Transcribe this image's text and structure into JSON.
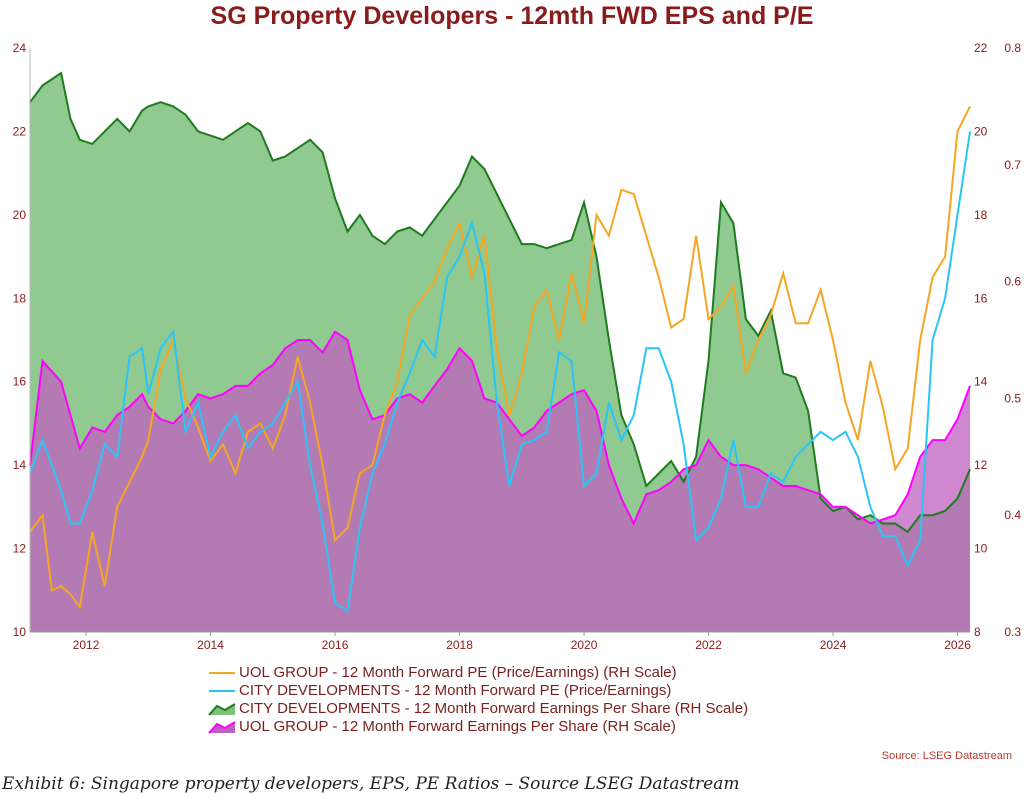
{
  "header": {
    "title": "SG Property Developers - 12mth FWD EPS and P/E"
  },
  "source": "Source: LSEG Datastream",
  "caption": "Exhibit 6: Singapore property developers, EPS, PE Ratios – Source LSEG Datastream",
  "legend": [
    {
      "label": "UOL GROUP - 12 Month Forward PE (Price/Earnings) (RH Scale)",
      "color": "#f5a623",
      "kind": "line"
    },
    {
      "label": "CITY DEVELOPMENTS - 12 Month Forward PE (Price/Earnings)",
      "color": "#29c5f6",
      "kind": "line"
    },
    {
      "label": "CITY DEVELOPMENTS - 12 Month Forward Earnings Per Share (RH Scale)",
      "color": "#1e7b1e",
      "fill": "#7ec17e",
      "kind": "area"
    },
    {
      "label": "UOL GROUP - 12 Month Forward Earnings Per Share (RH Scale)",
      "color": "#ff00ff",
      "fill": "#bf5fbf",
      "kind": "area"
    }
  ],
  "chart_data": {
    "type": "line",
    "title": "SG Property Developers - 12mth FWD EPS and P/E",
    "x_ticks": [
      "2012",
      "2014",
      "2016",
      "2018",
      "2020",
      "2022",
      "2024",
      "2026"
    ],
    "left_axis": {
      "ylim": [
        10,
        24
      ],
      "ticks": [
        10,
        12,
        14,
        16,
        18,
        20,
        22,
        24
      ]
    },
    "right_axis_1": {
      "ylim": [
        8,
        22
      ],
      "ticks": [
        8,
        10,
        12,
        14,
        16,
        18,
        20,
        22
      ]
    },
    "right_axis_2": {
      "ylim": [
        0.3,
        0.8
      ],
      "ticks": [
        0.3,
        0.4,
        0.5,
        0.6,
        0.7,
        0.8
      ]
    },
    "series": [
      {
        "name": "CITY DEVELOPMENTS - 12 Month Forward Earnings Per Share (RH Scale)",
        "axis": "left",
        "color": "#1e7b1e",
        "fill": "#7ec17e",
        "x": [
          2011.1,
          2011.3,
          2011.6,
          2011.75,
          2011.9,
          2012.1,
          2012.3,
          2012.5,
          2012.7,
          2012.9,
          2013.0,
          2013.2,
          2013.4,
          2013.6,
          2013.8,
          2014.0,
          2014.2,
          2014.4,
          2014.6,
          2014.8,
          2015.0,
          2015.2,
          2015.4,
          2015.6,
          2015.8,
          2016.0,
          2016.2,
          2016.4,
          2016.6,
          2016.8,
          2017.0,
          2017.2,
          2017.4,
          2017.6,
          2017.8,
          2018.0,
          2018.2,
          2018.4,
          2018.6,
          2018.8,
          2019.0,
          2019.2,
          2019.4,
          2019.6,
          2019.8,
          2020.0,
          2020.2,
          2020.4,
          2020.6,
          2020.8,
          2021.0,
          2021.2,
          2021.4,
          2021.6,
          2021.8,
          2022.0,
          2022.2,
          2022.4,
          2022.6,
          2022.8,
          2023.0,
          2023.2,
          2023.4,
          2023.6,
          2023.8,
          2024.0,
          2024.2,
          2024.4,
          2024.6,
          2024.8,
          2025.0,
          2025.2,
          2025.4,
          2025.6,
          2025.8,
          2026.0,
          2026.2
        ],
        "values": [
          22.7,
          23.1,
          23.4,
          22.3,
          21.8,
          21.7,
          22.0,
          22.3,
          22.0,
          22.5,
          22.6,
          22.7,
          22.6,
          22.4,
          22.0,
          21.9,
          21.8,
          22.0,
          22.2,
          22.0,
          21.3,
          21.4,
          21.6,
          21.8,
          21.5,
          20.4,
          19.6,
          20.0,
          19.5,
          19.3,
          19.6,
          19.7,
          19.5,
          19.9,
          20.3,
          20.7,
          21.4,
          21.1,
          20.5,
          19.9,
          19.3,
          19.3,
          19.2,
          19.3,
          19.4,
          20.3,
          19.0,
          17.0,
          15.2,
          14.5,
          13.5,
          13.8,
          14.1,
          13.6,
          14.2,
          16.5,
          20.3,
          19.8,
          17.5,
          17.1,
          17.7,
          16.2,
          16.1,
          15.3,
          13.2,
          12.9,
          13.0,
          12.7,
          12.8,
          12.6,
          12.6,
          12.4,
          12.8,
          12.8,
          12.9,
          13.2,
          13.9
        ]
      },
      {
        "name": "UOL GROUP - 12 Month Forward Earnings Per Share (RH Scale)",
        "axis": "left",
        "color": "#ff00ff",
        "fill": "#bf5fbf",
        "x": [
          2011.1,
          2011.3,
          2011.6,
          2011.75,
          2011.9,
          2012.1,
          2012.3,
          2012.5,
          2012.7,
          2012.9,
          2013.0,
          2013.2,
          2013.4,
          2013.6,
          2013.8,
          2014.0,
          2014.2,
          2014.4,
          2014.6,
          2014.8,
          2015.0,
          2015.2,
          2015.4,
          2015.6,
          2015.8,
          2016.0,
          2016.2,
          2016.4,
          2016.6,
          2016.8,
          2017.0,
          2017.2,
          2017.4,
          2017.6,
          2017.8,
          2018.0,
          2018.2,
          2018.4,
          2018.6,
          2018.8,
          2019.0,
          2019.2,
          2019.4,
          2019.6,
          2019.8,
          2020.0,
          2020.2,
          2020.4,
          2020.6,
          2020.8,
          2021.0,
          2021.2,
          2021.4,
          2021.6,
          2021.8,
          2022.0,
          2022.2,
          2022.4,
          2022.6,
          2022.8,
          2023.0,
          2023.2,
          2023.4,
          2023.6,
          2023.8,
          2024.0,
          2024.2,
          2024.4,
          2024.6,
          2024.8,
          2025.0,
          2025.2,
          2025.4,
          2025.6,
          2025.8,
          2026.0,
          2026.2
        ],
        "values": [
          14.0,
          16.5,
          16.0,
          15.2,
          14.4,
          14.9,
          14.8,
          15.2,
          15.4,
          15.7,
          15.4,
          15.1,
          15.0,
          15.3,
          15.7,
          15.6,
          15.7,
          15.9,
          15.9,
          16.2,
          16.4,
          16.8,
          17.0,
          17.0,
          16.7,
          17.2,
          17.0,
          15.8,
          15.1,
          15.2,
          15.6,
          15.7,
          15.5,
          15.9,
          16.3,
          16.8,
          16.5,
          15.6,
          15.5,
          15.1,
          14.7,
          14.9,
          15.3,
          15.5,
          15.7,
          15.8,
          15.3,
          14.0,
          13.2,
          12.6,
          13.3,
          13.4,
          13.6,
          13.9,
          14.0,
          14.6,
          14.2,
          14.0,
          14.0,
          13.9,
          13.7,
          13.5,
          13.5,
          13.4,
          13.3,
          13.0,
          13.0,
          12.8,
          12.6,
          12.7,
          12.8,
          13.3,
          14.2,
          14.6,
          14.6,
          15.1,
          15.9
        ]
      },
      {
        "name": "UOL GROUP - 12 Month Forward PE (Price/Earnings) (RH Scale)",
        "axis": "right_1",
        "color": "#f5a623",
        "x": [
          2011.1,
          2011.3,
          2011.45,
          2011.6,
          2011.75,
          2011.9,
          2012.1,
          2012.3,
          2012.5,
          2012.7,
          2012.9,
          2013.0,
          2013.2,
          2013.4,
          2013.6,
          2013.8,
          2014.0,
          2014.2,
          2014.4,
          2014.6,
          2014.8,
          2015.0,
          2015.2,
          2015.4,
          2015.6,
          2015.8,
          2016.0,
          2016.2,
          2016.4,
          2016.6,
          2016.8,
          2017.0,
          2017.2,
          2017.4,
          2017.6,
          2017.8,
          2018.0,
          2018.2,
          2018.4,
          2018.6,
          2018.8,
          2019.0,
          2019.2,
          2019.4,
          2019.6,
          2019.8,
          2020.0,
          2020.2,
          2020.4,
          2020.6,
          2020.8,
          2021.0,
          2021.2,
          2021.4,
          2021.6,
          2021.8,
          2022.0,
          2022.2,
          2022.4,
          2022.6,
          2022.8,
          2023.0,
          2023.2,
          2023.4,
          2023.6,
          2023.8,
          2024.0,
          2024.2,
          2024.4,
          2024.6,
          2024.8,
          2025.0,
          2025.2,
          2025.4,
          2025.6,
          2025.8,
          2026.0,
          2026.2
        ],
        "values": [
          10.4,
          10.8,
          9.0,
          9.1,
          8.9,
          8.6,
          10.4,
          9.1,
          11.0,
          11.6,
          12.2,
          12.6,
          14.3,
          15.0,
          13.6,
          12.9,
          12.1,
          12.5,
          11.8,
          12.8,
          13.0,
          12.4,
          13.2,
          14.6,
          13.5,
          12.0,
          10.2,
          10.5,
          11.8,
          12.0,
          13.2,
          14.0,
          15.6,
          16.0,
          16.4,
          17.2,
          17.8,
          16.5,
          17.5,
          14.8,
          13.2,
          14.2,
          15.8,
          16.2,
          15.0,
          16.6,
          15.4,
          18.0,
          17.5,
          18.6,
          18.5,
          17.5,
          16.5,
          15.3,
          15.5,
          17.5,
          15.5,
          15.8,
          16.3,
          14.2,
          15.0,
          15.6,
          16.6,
          15.4,
          15.4,
          16.2,
          15.0,
          13.5,
          12.6,
          14.5,
          13.4,
          11.9,
          12.4,
          15.0,
          16.5,
          17.0,
          20.0,
          20.6
        ]
      },
      {
        "name": "CITY DEVELOPMENTS - 12 Month Forward PE (Price/Earnings)",
        "axis": "right_1",
        "color": "#29c5f6",
        "x": [
          2011.1,
          2011.3,
          2011.45,
          2011.6,
          2011.75,
          2011.9,
          2012.1,
          2012.3,
          2012.5,
          2012.7,
          2012.9,
          2013.0,
          2013.2,
          2013.4,
          2013.6,
          2013.8,
          2014.0,
          2014.2,
          2014.4,
          2014.6,
          2014.8,
          2015.0,
          2015.2,
          2015.4,
          2015.6,
          2015.8,
          2016.0,
          2016.2,
          2016.4,
          2016.6,
          2016.8,
          2017.0,
          2017.2,
          2017.4,
          2017.6,
          2017.8,
          2018.0,
          2018.2,
          2018.4,
          2018.6,
          2018.8,
          2019.0,
          2019.2,
          2019.4,
          2019.6,
          2019.8,
          2020.0,
          2020.2,
          2020.4,
          2020.6,
          2020.8,
          2021.0,
          2021.2,
          2021.4,
          2021.6,
          2021.8,
          2022.0,
          2022.2,
          2022.4,
          2022.6,
          2022.8,
          2023.0,
          2023.2,
          2023.4,
          2023.6,
          2023.8,
          2024.0,
          2024.2,
          2024.4,
          2024.6,
          2024.8,
          2025.0,
          2025.2,
          2025.4,
          2025.6,
          2025.8,
          2026.0,
          2026.2
        ],
        "values": [
          11.8,
          12.6,
          12.0,
          11.4,
          10.6,
          10.6,
          11.4,
          12.5,
          12.2,
          14.6,
          14.8,
          13.7,
          14.8,
          15.2,
          12.8,
          13.5,
          12.2,
          12.8,
          13.2,
          12.4,
          12.8,
          13.0,
          13.5,
          14.0,
          12.0,
          10.6,
          8.7,
          8.5,
          10.5,
          11.8,
          12.5,
          13.5,
          14.2,
          15.0,
          14.6,
          16.5,
          17.0,
          17.8,
          16.6,
          13.5,
          11.5,
          12.5,
          12.6,
          12.8,
          14.7,
          14.5,
          11.5,
          11.8,
          13.5,
          12.6,
          13.2,
          14.8,
          14.8,
          14.0,
          12.5,
          10.2,
          10.5,
          11.2,
          12.6,
          11.0,
          11.0,
          11.8,
          11.6,
          12.2,
          12.5,
          12.8,
          12.6,
          12.8,
          12.2,
          11.0,
          10.3,
          10.3,
          9.6,
          10.2,
          15.0,
          16.0,
          18.0,
          20.0
        ]
      }
    ]
  }
}
